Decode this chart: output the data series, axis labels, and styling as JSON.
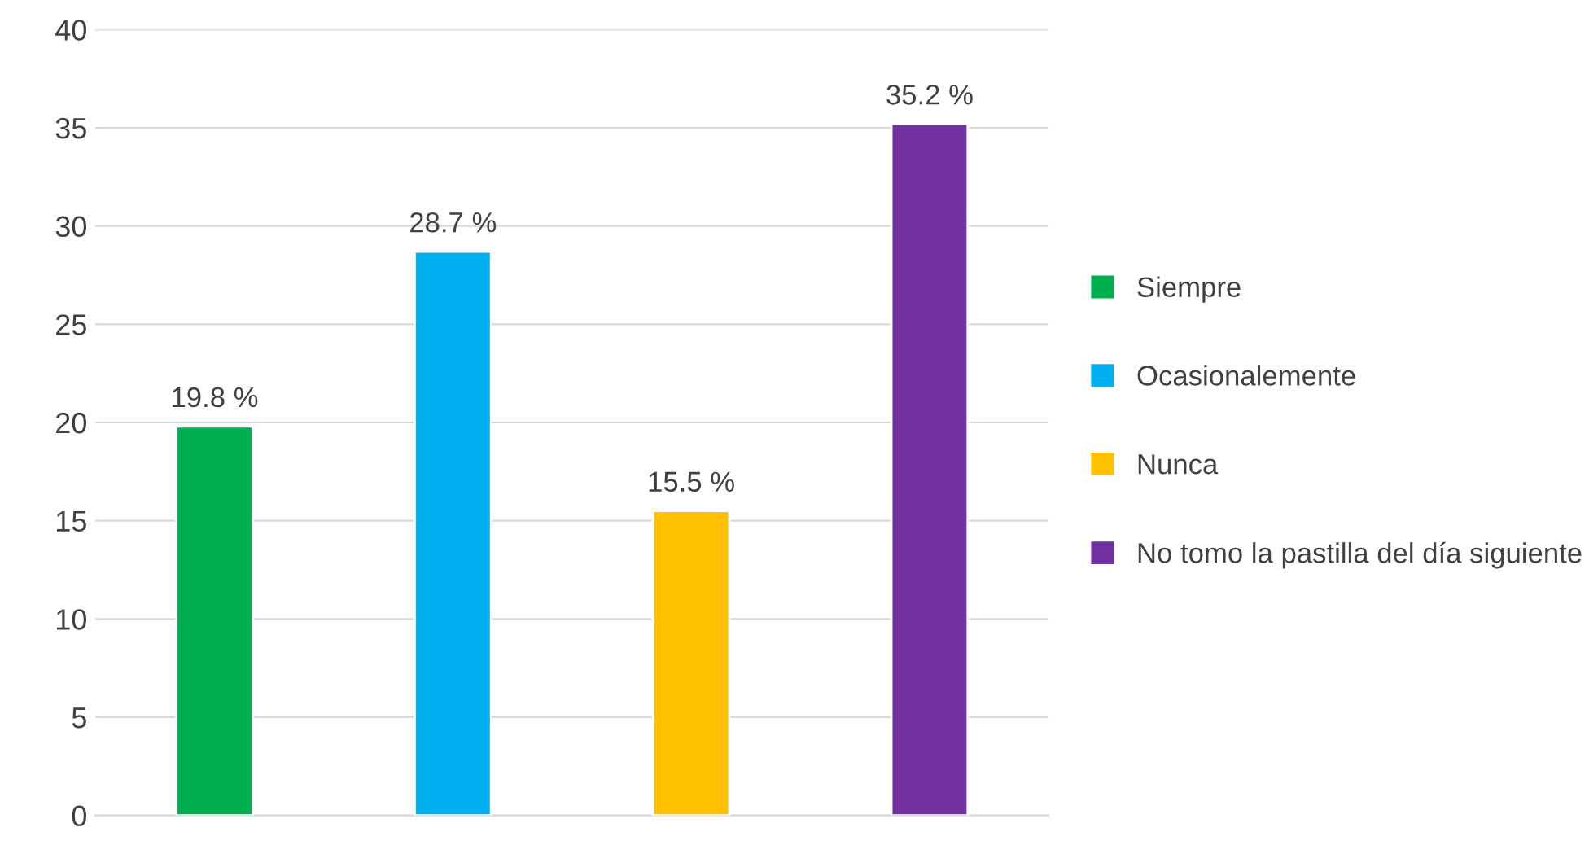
{
  "chart_data": {
    "type": "bar",
    "categories": [
      null,
      null,
      null,
      null
    ],
    "series": [
      {
        "name": "Siempre",
        "color": "#00b050",
        "values": [
          19.8,
          null,
          null,
          null
        ],
        "value_labels": [
          "19.8 %",
          null,
          null,
          null
        ]
      },
      {
        "name": "Ocasionalemente",
        "color": "#00b0f0",
        "values": [
          null,
          28.7,
          null,
          null
        ],
        "value_labels": [
          null,
          "28.7 %",
          null,
          null
        ]
      },
      {
        "name": "Nunca",
        "color": "#ffc000",
        "values": [
          null,
          null,
          15.5,
          null
        ],
        "value_labels": [
          null,
          null,
          "15.5 %",
          null
        ]
      },
      {
        "name": "No tomo la pastilla del día siguiente",
        "color": "#7030a0",
        "values": [
          null,
          null,
          null,
          35.2
        ],
        "value_labels": [
          null,
          null,
          null,
          "35.2 %"
        ]
      }
    ],
    "ylim": [
      0,
      40
    ],
    "yticks": [
      0,
      5,
      10,
      15,
      20,
      25,
      30,
      35,
      40
    ],
    "grid": "y",
    "legend": "right"
  }
}
